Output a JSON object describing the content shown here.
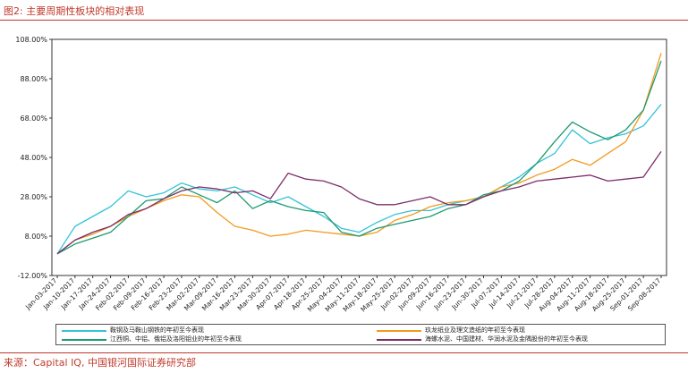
{
  "figure": {
    "title": "图2: 主要周期性板块的相对表现",
    "source": "来源：Capital IQ, 中国银河国际证券研究部"
  },
  "chart_data": {
    "type": "line",
    "ylim": [
      -12,
      108
    ],
    "yticks": [
      "108.00%",
      "88.00%",
      "68.00%",
      "48.00%",
      "28.00%",
      "8.00%",
      "-12.00%"
    ],
    "ytick_values": [
      108,
      88,
      68,
      48,
      28,
      8,
      -12
    ],
    "grid": false,
    "legend_position": "bottom",
    "categories": [
      "Jan-03-2017",
      "Jan-10-2017",
      "Jan-17-2017",
      "Jan-24-2017",
      "Feb-02-2017",
      "Feb-09-2017",
      "Feb-16-2017",
      "Feb-23-2017",
      "Mar-02-2017",
      "Mar-09-2017",
      "Mar-16-2017",
      "Mar-23-2017",
      "Mar-30-2017",
      "Apr-07-2017",
      "Apr-18-2017",
      "Apr-25-2017",
      "May-04-2017",
      "May-11-2017",
      "May-18-2017",
      "May-25-2017",
      "Jun-02-2017",
      "Jun-09-2017",
      "Jun-16-2017",
      "Jun-23-2017",
      "Jun-30-2017",
      "Jul-07-2017",
      "Jul-14-2017",
      "Jul-21-2017",
      "Jul-28-2017",
      "Aug-04-2017",
      "Aug-11-2017",
      "Aug-18-2017",
      "Aug-25-2017",
      "Sep-01-2017",
      "Sep-08-2017"
    ],
    "series": [
      {
        "name": "鞍钢及马鞍山钢铁的年初至今表现",
        "color": "#35c3d8",
        "values": [
          -1,
          13,
          18,
          23,
          31,
          28,
          30,
          35,
          32,
          31,
          33,
          29,
          25,
          28,
          23,
          18,
          12,
          10,
          15,
          19,
          21,
          21,
          24,
          26,
          28,
          33,
          38,
          45,
          50,
          62,
          55,
          58,
          60,
          64,
          75
        ]
      },
      {
        "name": "玖龙纸业及理文造纸的年初至今表现",
        "color": "#f39a1e",
        "values": [
          -1,
          6,
          9,
          13,
          18,
          22,
          26,
          29,
          28,
          20,
          13,
          11,
          8,
          9,
          11,
          10,
          9,
          8,
          10,
          16,
          19,
          23,
          25,
          26,
          28,
          33,
          35,
          39,
          42,
          47,
          44,
          50,
          56,
          72,
          101
        ]
      },
      {
        "name": "江西铜、中铝、俄铝及洛阳钼业的年初至今表现",
        "color": "#1e9a6e",
        "values": [
          -1,
          4,
          7,
          10,
          18,
          26,
          27,
          33,
          29,
          25,
          31,
          22,
          26,
          23,
          21,
          20,
          10,
          8,
          12,
          14,
          16,
          18,
          22,
          24,
          29,
          31,
          36,
          45,
          56,
          66,
          61,
          57,
          62,
          72,
          97
        ]
      },
      {
        "name": "海螺水泥、中国建材、华润水泥及金隅股份的年初至今表现",
        "color": "#7b2e6b",
        "values": [
          -1,
          6,
          10,
          13,
          19,
          22,
          27,
          31,
          33,
          32,
          30,
          31,
          27,
          40,
          37,
          36,
          33,
          27,
          24,
          24,
          26,
          28,
          24,
          24,
          28,
          31,
          33,
          36,
          37,
          38,
          39,
          36,
          37,
          38,
          51
        ]
      }
    ]
  }
}
